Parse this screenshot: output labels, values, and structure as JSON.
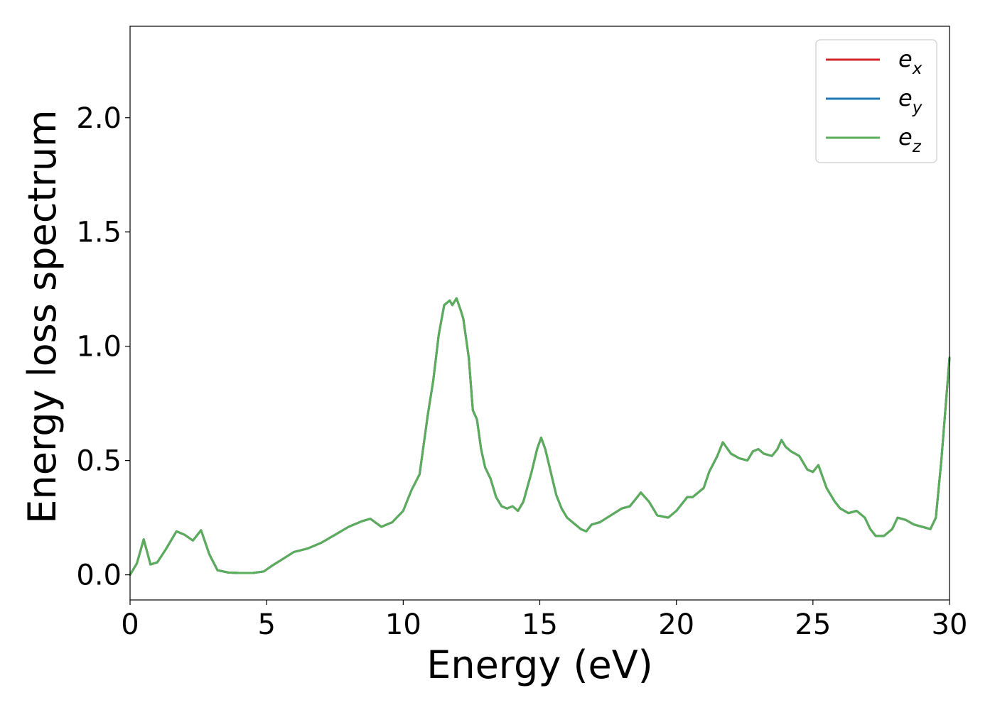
{
  "chart_data": {
    "type": "line",
    "title": "",
    "xlabel": "Energy (eV)",
    "ylabel": "Energy loss spectrum",
    "xlim": [
      0,
      30
    ],
    "ylim": [
      -0.11,
      2.4
    ],
    "xticks": [
      0,
      5,
      10,
      15,
      20,
      25,
      30
    ],
    "xtick_labels": [
      "0",
      "5",
      "10",
      "15",
      "20",
      "25",
      "30"
    ],
    "yticks": [
      0.0,
      0.5,
      1.0,
      1.5,
      2.0
    ],
    "ytick_labels": [
      "0.0",
      "0.5",
      "1.0",
      "1.5",
      "2.0"
    ],
    "grid": false,
    "legend_position": "top-right",
    "x": [
      0,
      0.25,
      0.5,
      0.75,
      1.0,
      1.3,
      1.7,
      2.0,
      2.3,
      2.6,
      2.9,
      3.2,
      3.6,
      4.0,
      4.5,
      4.9,
      5.2,
      5.6,
      6.0,
      6.5,
      7.0,
      7.5,
      8.0,
      8.5,
      8.8,
      9.2,
      9.6,
      10.0,
      10.3,
      10.6,
      10.9,
      11.1,
      11.3,
      11.5,
      11.7,
      11.8,
      11.95,
      12.1,
      12.2,
      12.4,
      12.55,
      12.7,
      12.85,
      13.0,
      13.2,
      13.4,
      13.6,
      13.8,
      14.0,
      14.2,
      14.4,
      14.7,
      14.9,
      15.05,
      15.2,
      15.4,
      15.6,
      15.8,
      16.0,
      16.3,
      16.5,
      16.7,
      16.9,
      17.2,
      17.6,
      18.0,
      18.3,
      18.5,
      18.7,
      19.0,
      19.3,
      19.7,
      20.0,
      20.2,
      20.4,
      20.6,
      20.8,
      21.0,
      21.2,
      21.5,
      21.7,
      22.0,
      22.3,
      22.6,
      22.8,
      23.0,
      23.2,
      23.5,
      23.7,
      23.85,
      24.0,
      24.2,
      24.5,
      24.8,
      25.0,
      25.2,
      25.5,
      25.8,
      26.0,
      26.3,
      26.6,
      26.9,
      27.1,
      27.3,
      27.6,
      27.9,
      28.1,
      28.4,
      28.7,
      29.0,
      29.3,
      29.5,
      29.7,
      30.0
    ],
    "series": [
      {
        "name": "e_x",
        "color": "#d62728",
        "values": [
          0.0,
          0.05,
          0.155,
          0.045,
          0.055,
          0.11,
          0.19,
          0.175,
          0.15,
          0.195,
          0.09,
          0.02,
          0.01,
          0.008,
          0.008,
          0.015,
          0.04,
          0.07,
          0.1,
          0.115,
          0.14,
          0.175,
          0.21,
          0.235,
          0.245,
          0.21,
          0.23,
          0.28,
          0.37,
          0.44,
          0.7,
          0.85,
          1.05,
          1.18,
          1.2,
          1.18,
          1.21,
          1.16,
          1.12,
          0.95,
          0.72,
          0.68,
          0.55,
          0.47,
          0.42,
          0.34,
          0.3,
          0.29,
          0.3,
          0.28,
          0.32,
          0.45,
          0.55,
          0.6,
          0.55,
          0.45,
          0.35,
          0.29,
          0.25,
          0.22,
          0.2,
          0.19,
          0.22,
          0.23,
          0.26,
          0.29,
          0.3,
          0.33,
          0.36,
          0.32,
          0.26,
          0.25,
          0.28,
          0.31,
          0.34,
          0.34,
          0.36,
          0.38,
          0.45,
          0.52,
          0.58,
          0.53,
          0.51,
          0.5,
          0.54,
          0.55,
          0.53,
          0.52,
          0.55,
          0.59,
          0.56,
          0.54,
          0.52,
          0.46,
          0.45,
          0.48,
          0.38,
          0.32,
          0.29,
          0.27,
          0.28,
          0.25,
          0.2,
          0.17,
          0.17,
          0.2,
          0.25,
          0.24,
          0.22,
          0.21,
          0.2,
          0.25,
          0.5,
          0.95
        ]
      },
      {
        "name": "e_y",
        "color": "#1f77b4",
        "values": [
          0.0,
          0.05,
          0.155,
          0.045,
          0.055,
          0.11,
          0.19,
          0.175,
          0.15,
          0.195,
          0.09,
          0.02,
          0.01,
          0.008,
          0.008,
          0.015,
          0.04,
          0.07,
          0.1,
          0.115,
          0.14,
          0.175,
          0.21,
          0.235,
          0.245,
          0.21,
          0.23,
          0.28,
          0.37,
          0.44,
          0.7,
          0.85,
          1.05,
          1.18,
          1.2,
          1.18,
          1.21,
          1.16,
          1.12,
          0.95,
          0.72,
          0.68,
          0.55,
          0.47,
          0.42,
          0.34,
          0.3,
          0.29,
          0.3,
          0.28,
          0.32,
          0.45,
          0.55,
          0.6,
          0.55,
          0.45,
          0.35,
          0.29,
          0.25,
          0.22,
          0.2,
          0.19,
          0.22,
          0.23,
          0.26,
          0.29,
          0.3,
          0.33,
          0.36,
          0.32,
          0.26,
          0.25,
          0.28,
          0.31,
          0.34,
          0.34,
          0.36,
          0.38,
          0.45,
          0.52,
          0.58,
          0.53,
          0.51,
          0.5,
          0.54,
          0.55,
          0.53,
          0.52,
          0.55,
          0.59,
          0.56,
          0.54,
          0.52,
          0.46,
          0.45,
          0.48,
          0.38,
          0.32,
          0.29,
          0.27,
          0.28,
          0.25,
          0.2,
          0.17,
          0.17,
          0.2,
          0.25,
          0.24,
          0.22,
          0.21,
          0.2,
          0.25,
          0.5,
          0.95
        ]
      },
      {
        "name": "e_z",
        "color": "#5aad5a",
        "values": [
          0.0,
          0.05,
          0.155,
          0.045,
          0.055,
          0.11,
          0.19,
          0.175,
          0.15,
          0.195,
          0.09,
          0.02,
          0.01,
          0.008,
          0.008,
          0.015,
          0.04,
          0.07,
          0.1,
          0.115,
          0.14,
          0.175,
          0.21,
          0.235,
          0.245,
          0.21,
          0.23,
          0.28,
          0.37,
          0.44,
          0.7,
          0.85,
          1.05,
          1.18,
          1.2,
          1.18,
          1.21,
          1.16,
          1.12,
          0.95,
          0.72,
          0.68,
          0.55,
          0.47,
          0.42,
          0.34,
          0.3,
          0.29,
          0.3,
          0.28,
          0.32,
          0.45,
          0.55,
          0.6,
          0.55,
          0.45,
          0.35,
          0.29,
          0.25,
          0.22,
          0.2,
          0.19,
          0.22,
          0.23,
          0.26,
          0.29,
          0.3,
          0.33,
          0.36,
          0.32,
          0.26,
          0.25,
          0.28,
          0.31,
          0.34,
          0.34,
          0.36,
          0.38,
          0.45,
          0.52,
          0.58,
          0.53,
          0.51,
          0.5,
          0.54,
          0.55,
          0.53,
          0.52,
          0.55,
          0.59,
          0.56,
          0.54,
          0.52,
          0.46,
          0.45,
          0.48,
          0.38,
          0.32,
          0.29,
          0.27,
          0.28,
          0.25,
          0.2,
          0.17,
          0.17,
          0.2,
          0.25,
          0.24,
          0.22,
          0.21,
          0.2,
          0.25,
          0.5,
          0.95
        ]
      }
    ],
    "legend": [
      {
        "base": "e",
        "sub": "x",
        "color": "#d62728"
      },
      {
        "base": "e",
        "sub": "y",
        "color": "#1f77b4"
      },
      {
        "base": "e",
        "sub": "z",
        "color": "#5aad5a"
      }
    ]
  }
}
